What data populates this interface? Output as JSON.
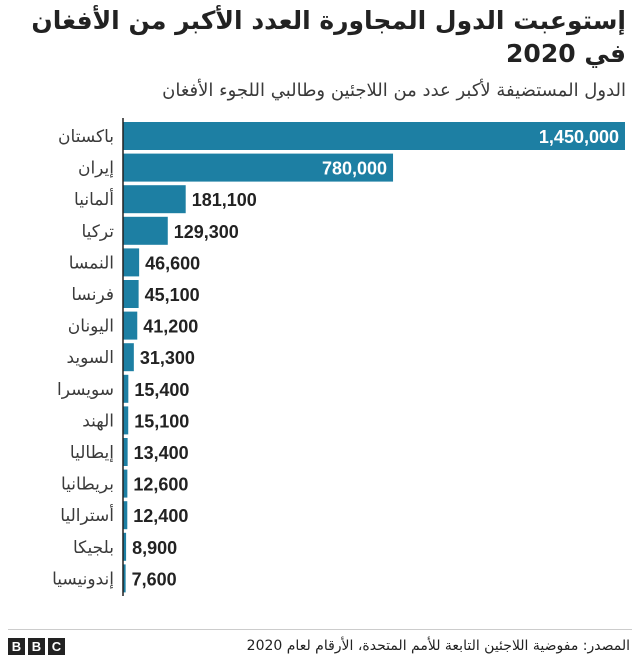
{
  "title": "إستوعبت الدول المجاورة العدد الأكبر من الأفغان في 2020",
  "subtitle": "الدول المستضيفة لأكبر عدد من اللاجئين وطالبي اللجوء الأفغان",
  "colors": {
    "bar": "#1d7fa3",
    "label_inside": "#ffffff",
    "label_outside": "#222222",
    "axis": "#222222"
  },
  "chart_data": {
    "type": "bar",
    "orientation": "horizontal",
    "categories": [
      "باكستان",
      "إيران",
      "ألمانيا",
      "تركيا",
      "النمسا",
      "فرنسا",
      "اليونان",
      "السويد",
      "سويسرا",
      "الهند",
      "إيطاليا",
      "بريطانيا",
      "أستراليا",
      "بلجيكا",
      "إندونيسيا"
    ],
    "values": [
      1450000,
      780000,
      181100,
      129300,
      46600,
      45100,
      41200,
      31300,
      15400,
      15100,
      13400,
      12600,
      12400,
      8900,
      7600
    ],
    "value_labels": [
      "1,450,000",
      "780,000",
      "181,100",
      "129,300",
      "46,600",
      "45,100",
      "41,200",
      "31,300",
      "15,400",
      "15,100",
      "13,400",
      "12,600",
      "12,400",
      "8,900",
      "7,600"
    ],
    "xlim": [
      0,
      1450000
    ],
    "grid": false,
    "legend": "none"
  },
  "footer": {
    "source": "المصدر: مفوضية اللاجئين التابعة للأمم المتحدة، الأرقام لعام 2020",
    "logo_letters": [
      "B",
      "B",
      "C"
    ]
  }
}
